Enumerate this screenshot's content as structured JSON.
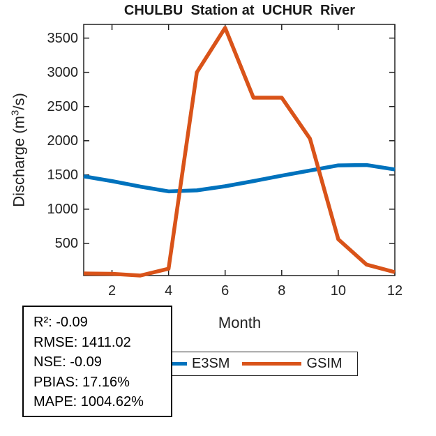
{
  "chart_data": {
    "type": "line",
    "title": "CHULBU  Station at  UCHUR  River",
    "xlabel": "Month",
    "ylabel": "Discharge (m³/s)",
    "ylabel_parts": {
      "pre": "Discharge (m",
      "sup": "3",
      "post": "/s)"
    },
    "x": [
      1,
      2,
      3,
      4,
      5,
      6,
      7,
      8,
      9,
      10,
      11,
      12
    ],
    "series": [
      {
        "name": "E3SM",
        "color": "#0072BD",
        "values": [
          1480,
          1410,
          1330,
          1260,
          1275,
          1335,
          1410,
          1490,
          1565,
          1640,
          1645,
          1580
        ]
      },
      {
        "name": "GSIM",
        "color": "#D95319",
        "values": [
          60,
          55,
          30,
          130,
          3000,
          3650,
          2630,
          2630,
          2030,
          560,
          190,
          80
        ]
      }
    ],
    "xlim": [
      1,
      12
    ],
    "ylim": [
      30,
      3700
    ],
    "xticks": [
      2,
      4,
      6,
      8,
      10,
      12
    ],
    "yticks": [
      500,
      1000,
      1500,
      2000,
      2500,
      3000,
      3500
    ],
    "grid": false,
    "legend_position": "below-axes-right"
  },
  "stats_box": {
    "lines": [
      "R²: -0.09",
      "RMSE: 1411.02",
      "NSE: -0.09",
      "PBIAS: 17.16%",
      "MAPE: 1004.62%"
    ]
  },
  "colors": {
    "axis": "#222222",
    "background": "#ffffff",
    "e3sm_line": "#0072BD",
    "gsim_line": "#D95319"
  }
}
